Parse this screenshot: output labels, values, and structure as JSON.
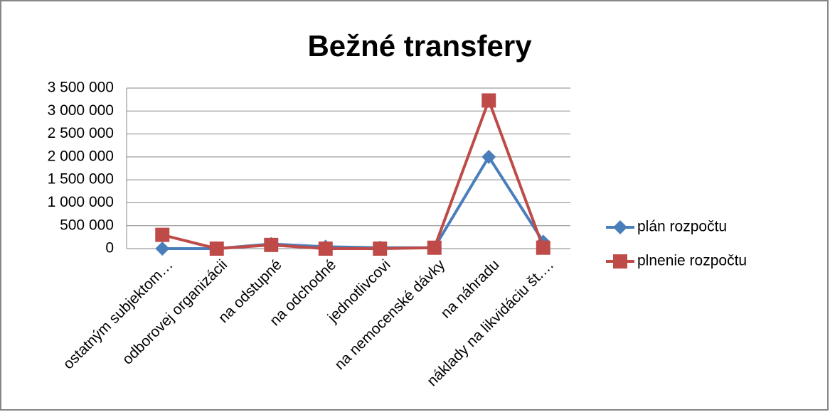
{
  "chart_data": {
    "type": "line",
    "title": "Bežné transfery",
    "categories": [
      "ostatným subjektom…",
      "odborovej organizácii",
      "na odstupné",
      "na odchodné",
      "jednotlivcovi",
      "na nemocenské dávky",
      "na náhradu",
      "náklady na likvidáciu št.…"
    ],
    "series": [
      {
        "name": "plán rozpočtu",
        "color": "#4a7ebb",
        "marker": "diamond",
        "values": [
          0,
          0,
          100000,
          40000,
          20000,
          20000,
          2000000,
          150000
        ]
      },
      {
        "name": "plnenie rozpočtu",
        "color": "#be4b48",
        "marker": "square",
        "values": [
          300000,
          0,
          80000,
          0,
          0,
          20000,
          3230000,
          20000
        ]
      }
    ],
    "ylim": [
      0,
      3500000
    ],
    "yticks": [
      0,
      {
        "value": 500000,
        "label": "500 000"
      },
      {
        "value": 1000000,
        "label": "1 000 000"
      },
      {
        "value": 1500000,
        "label": "1 500 000"
      },
      {
        "value": 2000000,
        "label": "2 000 000"
      },
      {
        "value": 2500000,
        "label": "2 500 000"
      },
      {
        "value": 3000000,
        "label": "3 000 000"
      },
      {
        "value": 3500000,
        "label": "3 500 000"
      }
    ],
    "grid": true,
    "legend": "right"
  }
}
